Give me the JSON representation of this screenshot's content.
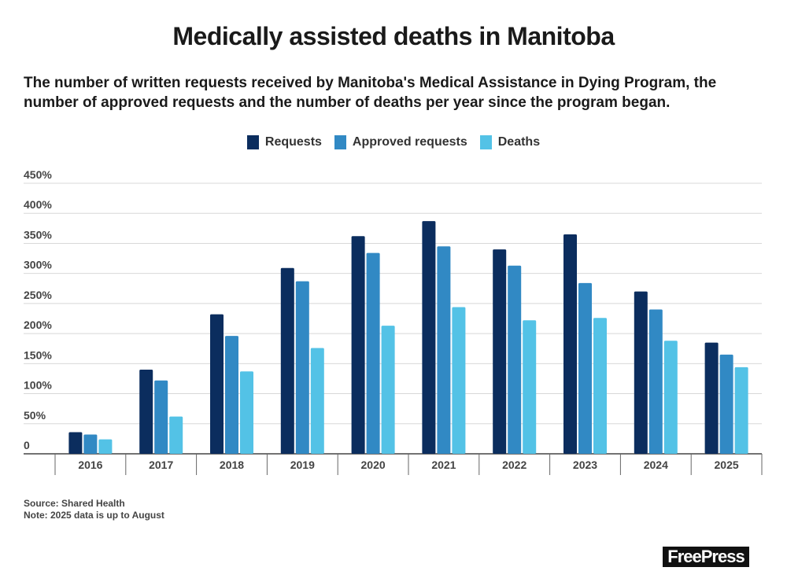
{
  "header": {
    "title": "Medically assisted deaths in Manitoba",
    "subtitle": "The number of written requests received by Manitoba's Medical Assistance in Dying Program, the number of approved requests and the number of deaths per year since the program began."
  },
  "footer": {
    "source": "Source: Shared Health",
    "note": "Note: 2025 data is up to August",
    "logo": "FreePress"
  },
  "chart_data": {
    "type": "bar",
    "title": "Medically assisted deaths in Manitoba",
    "xlabel": "",
    "ylabel": "",
    "ylim": [
      0,
      450
    ],
    "yticks": [
      0,
      50,
      100,
      150,
      200,
      250,
      300,
      350,
      400,
      450
    ],
    "ytick_labels": [
      "0",
      "50%",
      "100%",
      "150%",
      "200%",
      "250%",
      "300%",
      "350%",
      "400%",
      "450%"
    ],
    "grid": true,
    "legend_position": "top-center",
    "categories": [
      "2016",
      "2017",
      "2018",
      "2019",
      "2020",
      "2021",
      "2022",
      "2023",
      "2024",
      "2025"
    ],
    "series": [
      {
        "name": "Requests",
        "color": "#0b2d5e",
        "values": [
          36,
          140,
          232,
          309,
          362,
          387,
          340,
          365,
          270,
          185
        ]
      },
      {
        "name": "Approved requests",
        "color": "#3189c4",
        "values": [
          32,
          122,
          196,
          287,
          334,
          345,
          313,
          284,
          240,
          165
        ]
      },
      {
        "name": "Deaths",
        "color": "#53c2e6",
        "values": [
          24,
          62,
          137,
          176,
          213,
          244,
          222,
          226,
          188,
          144
        ]
      }
    ]
  }
}
